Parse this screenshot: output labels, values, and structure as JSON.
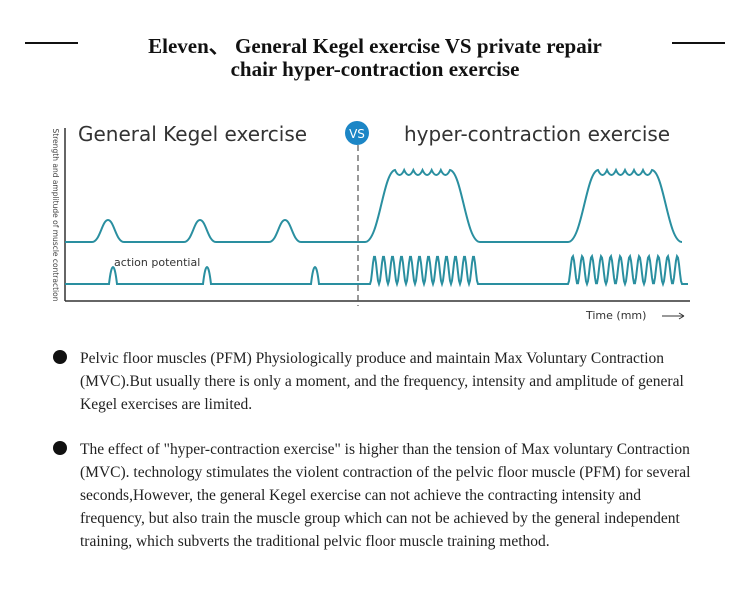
{
  "header": {
    "title_lines": [
      "Eleven、 General Kegel exercise VS private repair",
      "chair hyper-contraction exercise"
    ]
  },
  "diagram": {
    "left_heading": "General Kegel exercise",
    "vs": "VS",
    "right_heading": "hyper-contraction exercise",
    "y_label": "Strength and amplitude of muscle contraction",
    "annotation": "action potential",
    "x_label": "Time (mm)"
  },
  "bullets": [
    "Pelvic floor muscles (PFM) Physiologically produce and maintain Max Voluntary Contraction (MVC).But usually there is only a moment, and the frequency, intensity and amplitude of general Kegel exercises are limited.",
    "The effect of \"hyper-contraction exercise\" is higher than the tension of Max voluntary Contraction (MVC). technology stimulates the violent contraction of the pelvic floor muscle (PFM) for several seconds,However, the general Kegel exercise can not achieve the contracting intensity and frequency, but also train the muscle group which can not be achieved by the general independent training, which subverts the traditional pelvic floor muscle training method."
  ]
}
